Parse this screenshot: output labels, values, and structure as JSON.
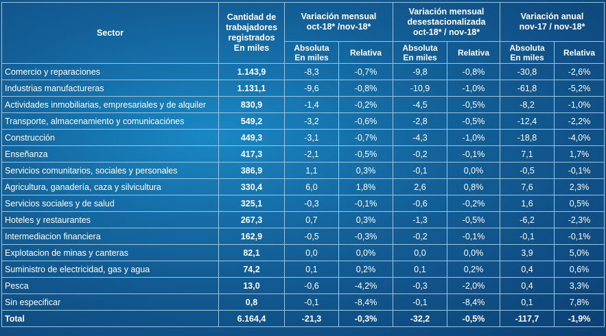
{
  "headers": {
    "sector": "Sector",
    "qty": [
      "Cantidad de",
      "trabajadores",
      "registrados",
      "En miles"
    ],
    "mensual": [
      "Variación mensual",
      "oct-18* /nov-18*"
    ],
    "desest": [
      "Variación mensual",
      "desestacionalizada",
      "oct-18* / nov-18*"
    ],
    "anual": [
      "Variación anual",
      "nov-17 / nov-18*"
    ],
    "absoluta": [
      "Absoluta",
      "En miles"
    ],
    "relativa": "Relativa"
  },
  "rows": [
    {
      "sector": "Comercio y reparaciones",
      "qty": "1.143,9",
      "m_abs": "-8,3",
      "m_rel": "-0,7%",
      "d_abs": "-9,8",
      "d_rel": "-0,8%",
      "a_abs": "-30,8",
      "a_rel": "-2,6%"
    },
    {
      "sector": "Industrias manufactureras",
      "qty": "1.131,1",
      "m_abs": "-9,6",
      "m_rel": "-0,8%",
      "d_abs": "-10,9",
      "d_rel": "-1,0%",
      "a_abs": "-61,8",
      "a_rel": "-5,2%"
    },
    {
      "sector": "Actividades inmobiliarias, empresariales y de alquiler",
      "qty": "830,9",
      "m_abs": "-1,4",
      "m_rel": "-0,2%",
      "d_abs": "-4,5",
      "d_rel": "-0,5%",
      "a_abs": "-8,2",
      "a_rel": "-1,0%"
    },
    {
      "sector": "Transporte, almacenamiento y comunicaciónes",
      "qty": "549,2",
      "m_abs": "-3,2",
      "m_rel": "-0,6%",
      "d_abs": "-2,8",
      "d_rel": "-0,5%",
      "a_abs": "-12,4",
      "a_rel": "-2,2%"
    },
    {
      "sector": "Construcción",
      "qty": "449,3",
      "m_abs": "-3,1",
      "m_rel": "-0,7%",
      "d_abs": "-4,3",
      "d_rel": "-1,0%",
      "a_abs": "-18,8",
      "a_rel": "-4,0%"
    },
    {
      "sector": "Enseñanza",
      "qty": "417,3",
      "m_abs": "-2,1",
      "m_rel": "-0,5%",
      "d_abs": "-0,2",
      "d_rel": "-0,1%",
      "a_abs": "7,1",
      "a_rel": "1,7%"
    },
    {
      "sector": "Servicios comunitarios, sociales y personales",
      "qty": "386,9",
      "m_abs": "1,1",
      "m_rel": "0,3%",
      "d_abs": "-0,1",
      "d_rel": "0,0%",
      "a_abs": "-0,5",
      "a_rel": "-0,1%"
    },
    {
      "sector": "Agricultura, ganadería, caza y silvicultura",
      "qty": "330,4",
      "m_abs": "6,0",
      "m_rel": "1,8%",
      "d_abs": "2,6",
      "d_rel": "0,8%",
      "a_abs": "7,6",
      "a_rel": "2,3%"
    },
    {
      "sector": "Servicios sociales y de salud",
      "qty": "325,1",
      "m_abs": "-0,3",
      "m_rel": "-0,1%",
      "d_abs": "-0,6",
      "d_rel": "-0,2%",
      "a_abs": "1,6",
      "a_rel": "0,5%"
    },
    {
      "sector": "Hoteles y restaurantes",
      "qty": "267,3",
      "m_abs": "0,7",
      "m_rel": "0,3%",
      "d_abs": "-1,3",
      "d_rel": "-0,5%",
      "a_abs": "-6,2",
      "a_rel": "-2,3%"
    },
    {
      "sector": "Intermediacion financiera",
      "qty": "162,9",
      "m_abs": "-0,5",
      "m_rel": "-0,3%",
      "d_abs": "-0,2",
      "d_rel": "-0,1%",
      "a_abs": "-0,1",
      "a_rel": "-0,1%"
    },
    {
      "sector": "Explotacion de minas y canteras",
      "qty": "82,1",
      "m_abs": "0,0",
      "m_rel": "0,0%",
      "d_abs": "0,0",
      "d_rel": "0,0%",
      "a_abs": "3,9",
      "a_rel": "5,0%"
    },
    {
      "sector": "Suministro de electricidad, gas y agua",
      "qty": "74,2",
      "m_abs": "0,1",
      "m_rel": "0,2%",
      "d_abs": "0,1",
      "d_rel": "0,2%",
      "a_abs": "0,4",
      "a_rel": "0,6%"
    },
    {
      "sector": "Pesca",
      "qty": "13,0",
      "m_abs": "-0,6",
      "m_rel": "-4,2%",
      "d_abs": "-0,3",
      "d_rel": "-2,0%",
      "a_abs": "0,4",
      "a_rel": "3,3%"
    },
    {
      "sector": "Sin especificar",
      "qty": "0,8",
      "m_abs": "-0,1",
      "m_rel": "-8,4%",
      "d_abs": "-0,1",
      "d_rel": "-8,4%",
      "a_abs": "0,1",
      "a_rel": "7,8%"
    }
  ],
  "total": {
    "sector": "Total",
    "qty": "6.164,4",
    "m_abs": "-21,3",
    "m_rel": "-0,3%",
    "d_abs": "-32,2",
    "d_rel": "-0,5%",
    "a_abs": "-117,7",
    "a_rel": "-1,9%"
  }
}
